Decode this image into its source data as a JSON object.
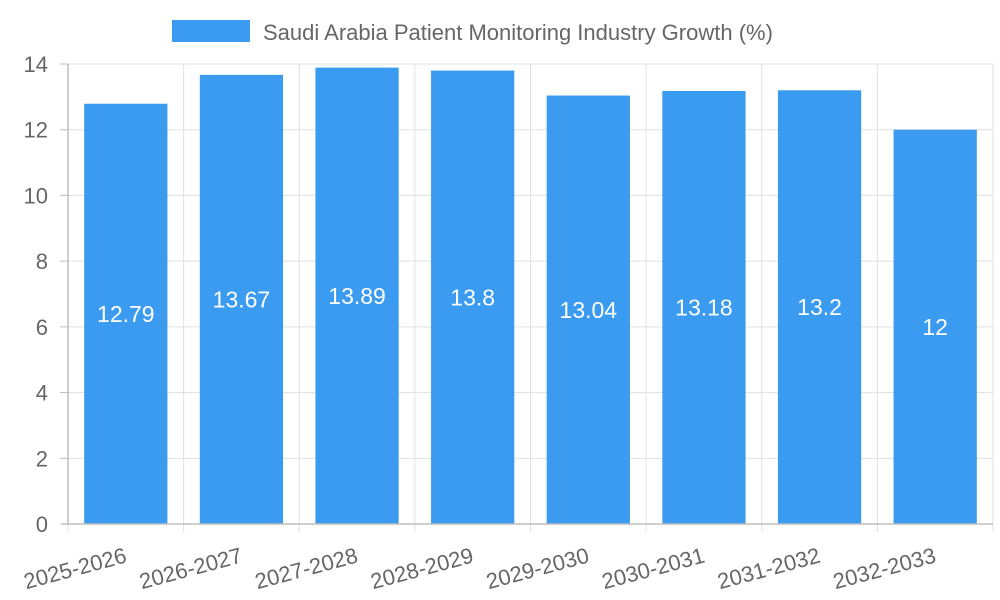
{
  "chart_data": {
    "type": "bar",
    "title": "",
    "xlabel": "",
    "ylabel": "",
    "categories": [
      "2025-2026",
      "2026-2027",
      "2027-2028",
      "2028-2029",
      "2029-2030",
      "2030-2031",
      "2031-2032",
      "2032-2033"
    ],
    "series": [
      {
        "name": "Saudi Arabia Patient Monitoring Industry Growth (%)",
        "values": [
          12.79,
          13.67,
          13.89,
          13.8,
          13.04,
          13.18,
          13.2,
          12
        ]
      }
    ],
    "ylim": [
      0,
      14
    ],
    "yticks": [
      0,
      2,
      4,
      6,
      8,
      10,
      12,
      14
    ],
    "grid": true,
    "legend_position": "top-center",
    "data_labels": true,
    "colors": {
      "bar": "#3a9bf0",
      "grid": "#e0e0e0",
      "axis": "#bdbdbd",
      "text": "#666666",
      "data_label": "#ffffff"
    }
  }
}
